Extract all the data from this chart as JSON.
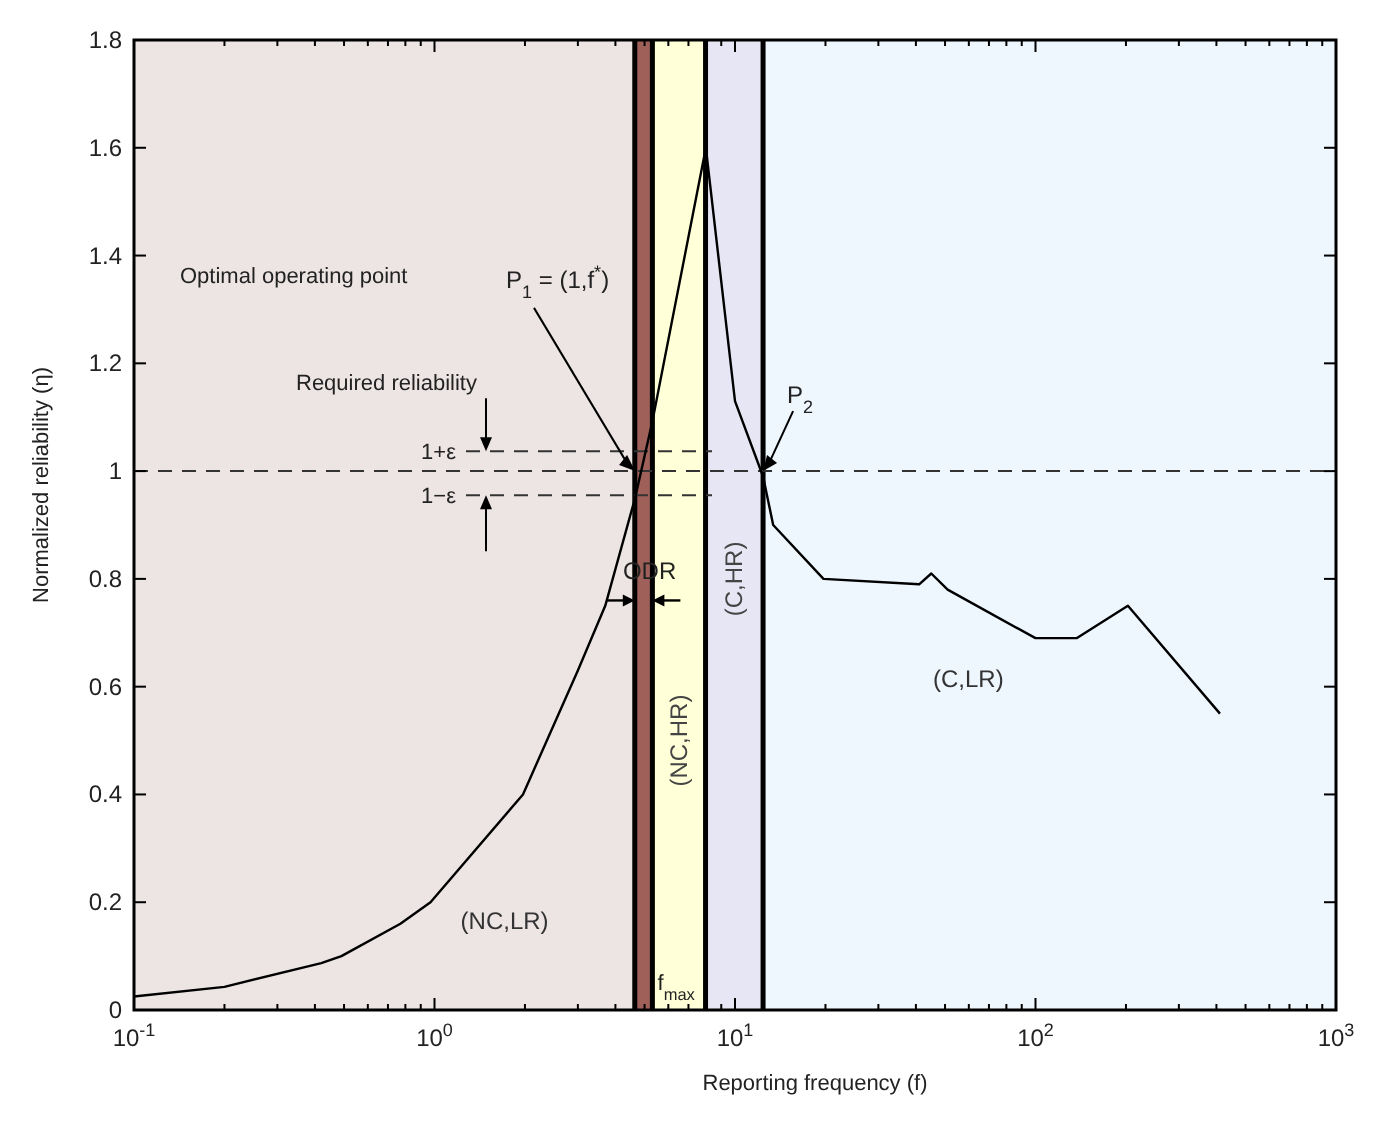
{
  "chart_data": {
    "type": "line",
    "xlabel": "Reporting frequency (f)",
    "ylabel": "Normalized reliability (η)",
    "x": [
      0.1,
      0.2,
      0.42,
      0.49,
      0.77,
      0.97,
      1.97,
      3.0,
      3.7,
      4.65,
      5.3,
      8.0,
      10.0,
      12.4,
      13.4,
      19.7,
      41,
      45,
      51,
      100,
      137,
      203,
      411
    ],
    "series": [
      {
        "color": "#000000",
        "values": [
          0.025,
          0.043,
          0.087,
          0.1,
          0.16,
          0.2,
          0.4,
          0.63,
          0.75,
          0.95,
          1.09,
          1.6,
          1.13,
          0.99,
          0.9,
          0.8,
          0.79,
          0.81,
          0.78,
          0.69,
          0.69,
          0.75,
          0.55
        ]
      }
    ],
    "log": "x",
    "marker": "none",
    "line_style": "solid",
    "xlim": [
      0.1,
      1000
    ],
    "ylim": [
      0,
      1.8
    ],
    "xticks": [
      {
        "value": 0.1,
        "label": "10$^{-1}$"
      },
      {
        "value": 0.2,
        "label": null
      },
      {
        "value": 0.3,
        "label": null
      },
      {
        "value": 0.4,
        "label": null
      },
      {
        "value": 0.5,
        "label": null
      },
      {
        "value": 0.6,
        "label": null
      },
      {
        "value": 0.7,
        "label": null
      },
      {
        "value": 0.8,
        "label": null
      },
      {
        "value": 0.9,
        "label": null
      },
      {
        "value": 1,
        "label": "10$^{0}$"
      },
      {
        "value": 2,
        "label": null
      },
      {
        "value": 3,
        "label": null
      },
      {
        "value": 4,
        "label": null
      },
      {
        "value": 5,
        "label": null
      },
      {
        "value": 6,
        "label": null
      },
      {
        "value": 7,
        "label": null
      },
      {
        "value": 8,
        "label": null
      },
      {
        "value": 9,
        "label": null
      },
      {
        "value": 10,
        "label": "10$^{1}$"
      },
      {
        "value": 20,
        "label": null
      },
      {
        "value": 30,
        "label": null
      },
      {
        "value": 40,
        "label": null
      },
      {
        "value": 50,
        "label": null
      },
      {
        "value": 60,
        "label": null
      },
      {
        "value": 70,
        "label": null
      },
      {
        "value": 80,
        "label": null
      },
      {
        "value": 90,
        "label": null
      },
      {
        "value": 100,
        "label": "10$^{2}$"
      },
      {
        "value": 200,
        "label": null
      },
      {
        "value": 300,
        "label": null
      },
      {
        "value": 400,
        "label": null
      },
      {
        "value": 500,
        "label": null
      },
      {
        "value": 600,
        "label": null
      },
      {
        "value": 700,
        "label": null
      },
      {
        "value": 800,
        "label": null
      },
      {
        "value": 900,
        "label": null
      },
      {
        "value": 1000,
        "label": "10$^{3}$"
      }
    ],
    "yticks": [
      0,
      0.2,
      0.4,
      0.6,
      0.8,
      1,
      1.2,
      1.4,
      1.6,
      1.8
    ],
    "bands": [
      {
        "axis": "x",
        "from": 0.1,
        "to": 4.64,
        "label": "(NC,LR)",
        "color": "#ede4e4"
      },
      {
        "axis": "x",
        "from": 4.64,
        "to": 5.31,
        "label": "ODR",
        "color": "#a0605a"
      },
      {
        "axis": "x",
        "from": 5.31,
        "to": 7.98,
        "label": "(NC,HR)",
        "color": "#ffffd8"
      },
      {
        "axis": "x",
        "from": 7.98,
        "to": 12.4,
        "label": "(C,HR)",
        "color": "#e6e6f4"
      },
      {
        "axis": "x",
        "from": 12.4,
        "to": 1000,
        "label": "(C,LR)",
        "color": "#eef6fe"
      }
    ],
    "ref_lines": [
      {
        "axis": "y",
        "value": 1,
        "label": null,
        "line_style": "dashed"
      },
      {
        "axis": "y",
        "value": 1.037,
        "label": "1+ε",
        "line_style": "dashed"
      },
      {
        "axis": "y",
        "value": 0.955,
        "label": "1−ε",
        "line_style": "dashed"
      }
    ],
    "annotations": [
      "Optimal operating point",
      {
        "text": "P$_{1}$ = (1,f$^{*}$)",
        "x": 4.65,
        "y": 1.0
      },
      "Required reliability",
      {
        "text": "P$_{2}$",
        "x": 12.4,
        "y": 1.0
      },
      {
        "text": "f$_{max}$",
        "x": 7.98,
        "y": 0
      }
    ]
  }
}
